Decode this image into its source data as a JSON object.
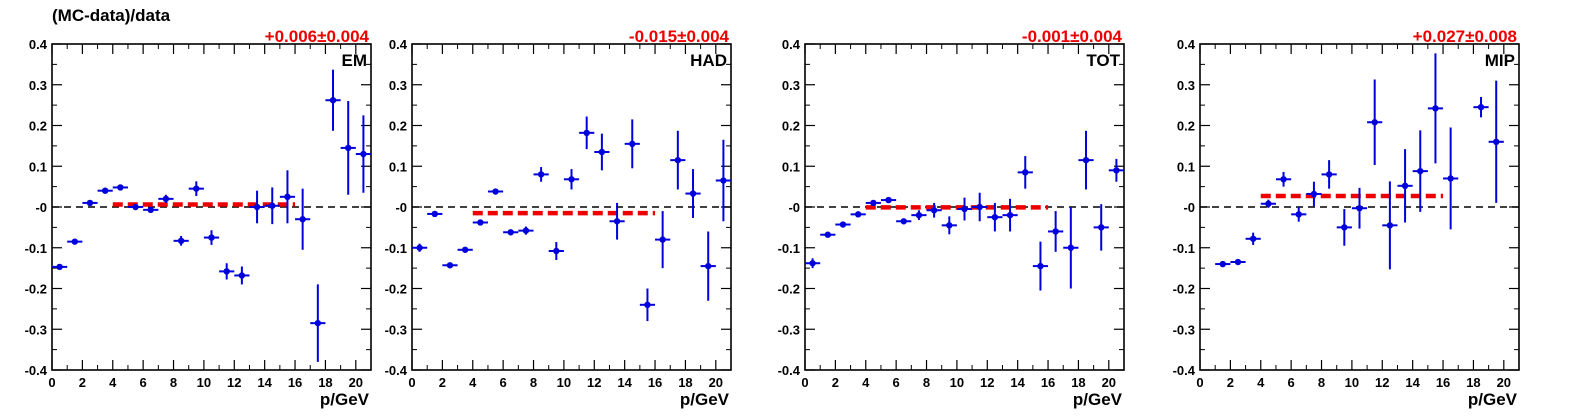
{
  "chart_data": {
    "type": "scatter",
    "ylabel": "(MC-data)/data",
    "xlabel": "p/GeV",
    "xlim": [
      0,
      21
    ],
    "ylim": [
      -0.4,
      0.4
    ],
    "yticks": [
      -0.4,
      -0.3,
      -0.2,
      -0.1,
      0,
      0.1,
      0.2,
      0.3,
      0.4
    ],
    "ytick_labels": [
      "-0.4",
      "-0.3",
      "-0.2",
      "-0.1",
      "-0",
      "0.1",
      "0.2",
      "0.3",
      "0.4"
    ],
    "xticks": [
      0,
      2,
      4,
      6,
      8,
      10,
      12,
      14,
      16,
      18,
      20
    ],
    "xtick_labels": [
      "0",
      "2",
      "4",
      "6",
      "8",
      "10",
      "12",
      "14",
      "16",
      "18",
      "20"
    ],
    "colors": {
      "points": "#0000dd",
      "fit": "#ee0000",
      "fit_label": "#ee0000",
      "zero_line": "#000000"
    },
    "panels": [
      {
        "label": "EM",
        "fit_text": "+0.006±0.004",
        "fit": {
          "value": 0.006,
          "x_range": [
            4,
            16
          ]
        },
        "points": [
          {
            "x": 0.5,
            "y": -0.147,
            "err": 0.005
          },
          {
            "x": 1.5,
            "y": -0.085,
            "err": 0.005
          },
          {
            "x": 2.5,
            "y": 0.01,
            "err": 0.006
          },
          {
            "x": 3.5,
            "y": 0.04,
            "err": 0.005
          },
          {
            "x": 4.5,
            "y": 0.048,
            "err": 0.005
          },
          {
            "x": 5.5,
            "y": 0.0,
            "err": 0.006
          },
          {
            "x": 6.5,
            "y": -0.007,
            "err": 0.006
          },
          {
            "x": 7.5,
            "y": 0.02,
            "err": 0.01
          },
          {
            "x": 8.5,
            "y": -0.083,
            "err": 0.012
          },
          {
            "x": 9.5,
            "y": 0.045,
            "err": 0.018
          },
          {
            "x": 10.5,
            "y": -0.075,
            "err": 0.018
          },
          {
            "x": 11.5,
            "y": -0.158,
            "err": 0.02
          },
          {
            "x": 12.5,
            "y": -0.168,
            "err": 0.022
          },
          {
            "x": 13.5,
            "y": 0.0,
            "err": 0.04
          },
          {
            "x": 14.5,
            "y": 0.003,
            "err": 0.045
          },
          {
            "x": 15.5,
            "y": 0.025,
            "err": 0.065
          },
          {
            "x": 16.5,
            "y": -0.03,
            "err": 0.075
          },
          {
            "x": 17.5,
            "y": -0.285,
            "err": 0.095
          },
          {
            "x": 18.5,
            "y": 0.262,
            "err": 0.075
          },
          {
            "x": 19.5,
            "y": 0.145,
            "err": 0.115
          },
          {
            "x": 20.5,
            "y": 0.13,
            "err": 0.095
          }
        ]
      },
      {
        "label": "HAD",
        "fit_text": "-0.015±0.004",
        "fit": {
          "value": -0.015,
          "x_range": [
            4,
            16
          ]
        },
        "points": [
          {
            "x": 0.5,
            "y": -0.1,
            "err": 0.01
          },
          {
            "x": 1.5,
            "y": -0.017,
            "err": 0.006
          },
          {
            "x": 2.5,
            "y": -0.143,
            "err": 0.005
          },
          {
            "x": 3.5,
            "y": -0.105,
            "err": 0.005
          },
          {
            "x": 4.5,
            "y": -0.038,
            "err": 0.006
          },
          {
            "x": 5.5,
            "y": 0.038,
            "err": 0.006
          },
          {
            "x": 6.5,
            "y": -0.062,
            "err": 0.007
          },
          {
            "x": 7.5,
            "y": -0.058,
            "err": 0.01
          },
          {
            "x": 8.5,
            "y": 0.08,
            "err": 0.018
          },
          {
            "x": 9.5,
            "y": -0.108,
            "err": 0.022
          },
          {
            "x": 10.5,
            "y": 0.068,
            "err": 0.025
          },
          {
            "x": 11.5,
            "y": 0.182,
            "err": 0.04
          },
          {
            "x": 12.5,
            "y": 0.135,
            "err": 0.045
          },
          {
            "x": 13.5,
            "y": -0.035,
            "err": 0.045
          },
          {
            "x": 14.5,
            "y": 0.155,
            "err": 0.06
          },
          {
            "x": 15.5,
            "y": -0.24,
            "err": 0.04
          },
          {
            "x": 16.5,
            "y": -0.08,
            "err": 0.07
          },
          {
            "x": 17.5,
            "y": 0.115,
            "err": 0.072
          },
          {
            "x": 18.5,
            "y": 0.033,
            "err": 0.06
          },
          {
            "x": 19.5,
            "y": -0.145,
            "err": 0.085
          },
          {
            "x": 20.5,
            "y": 0.065,
            "err": 0.1
          }
        ]
      },
      {
        "label": "TOT",
        "fit_text": "-0.001±0.004",
        "fit": {
          "value": -0.001,
          "x_range": [
            4,
            16
          ]
        },
        "points": [
          {
            "x": 0.5,
            "y": -0.138,
            "err": 0.012
          },
          {
            "x": 1.5,
            "y": -0.068,
            "err": 0.006
          },
          {
            "x": 2.5,
            "y": -0.043,
            "err": 0.006
          },
          {
            "x": 3.5,
            "y": -0.018,
            "err": 0.005
          },
          {
            "x": 4.5,
            "y": 0.01,
            "err": 0.006
          },
          {
            "x": 5.5,
            "y": 0.017,
            "err": 0.006
          },
          {
            "x": 6.5,
            "y": -0.035,
            "err": 0.006
          },
          {
            "x": 7.5,
            "y": -0.02,
            "err": 0.012
          },
          {
            "x": 8.5,
            "y": -0.008,
            "err": 0.018
          },
          {
            "x": 9.5,
            "y": -0.045,
            "err": 0.022
          },
          {
            "x": 10.5,
            "y": -0.005,
            "err": 0.028
          },
          {
            "x": 11.5,
            "y": 0.0,
            "err": 0.035
          },
          {
            "x": 12.5,
            "y": -0.025,
            "err": 0.035
          },
          {
            "x": 13.5,
            "y": -0.02,
            "err": 0.04
          },
          {
            "x": 14.5,
            "y": 0.085,
            "err": 0.04
          },
          {
            "x": 15.5,
            "y": -0.145,
            "err": 0.06
          },
          {
            "x": 16.5,
            "y": -0.06,
            "err": 0.05
          },
          {
            "x": 17.5,
            "y": -0.1,
            "err": 0.1
          },
          {
            "x": 18.5,
            "y": 0.115,
            "err": 0.072
          },
          {
            "x": 19.5,
            "y": -0.05,
            "err": 0.057
          },
          {
            "x": 20.5,
            "y": 0.09,
            "err": 0.028
          }
        ]
      },
      {
        "label": "MIP",
        "fit_text": "+0.027±0.008",
        "fit": {
          "value": 0.027,
          "x_range": [
            4,
            16
          ]
        },
        "points": [
          {
            "x": 1.5,
            "y": -0.14,
            "err": 0.005
          },
          {
            "x": 2.5,
            "y": -0.135,
            "err": 0.006
          },
          {
            "x": 3.5,
            "y": -0.078,
            "err": 0.015
          },
          {
            "x": 4.5,
            "y": 0.008,
            "err": 0.01
          },
          {
            "x": 5.5,
            "y": 0.068,
            "err": 0.018
          },
          {
            "x": 6.5,
            "y": -0.018,
            "err": 0.018
          },
          {
            "x": 7.5,
            "y": 0.032,
            "err": 0.03
          },
          {
            "x": 8.5,
            "y": 0.08,
            "err": 0.035
          },
          {
            "x": 9.5,
            "y": -0.05,
            "err": 0.045
          },
          {
            "x": 10.5,
            "y": -0.003,
            "err": 0.05
          },
          {
            "x": 11.5,
            "y": 0.208,
            "err": 0.105
          },
          {
            "x": 12.5,
            "y": -0.045,
            "err": 0.108
          },
          {
            "x": 13.5,
            "y": 0.052,
            "err": 0.09
          },
          {
            "x": 14.5,
            "y": 0.088,
            "err": 0.1
          },
          {
            "x": 15.5,
            "y": 0.242,
            "err": 0.135
          },
          {
            "x": 16.5,
            "y": 0.07,
            "err": 0.125
          },
          {
            "x": 18.5,
            "y": 0.245,
            "err": 0.025
          },
          {
            "x": 19.5,
            "y": 0.16,
            "err": 0.15
          }
        ]
      }
    ]
  }
}
